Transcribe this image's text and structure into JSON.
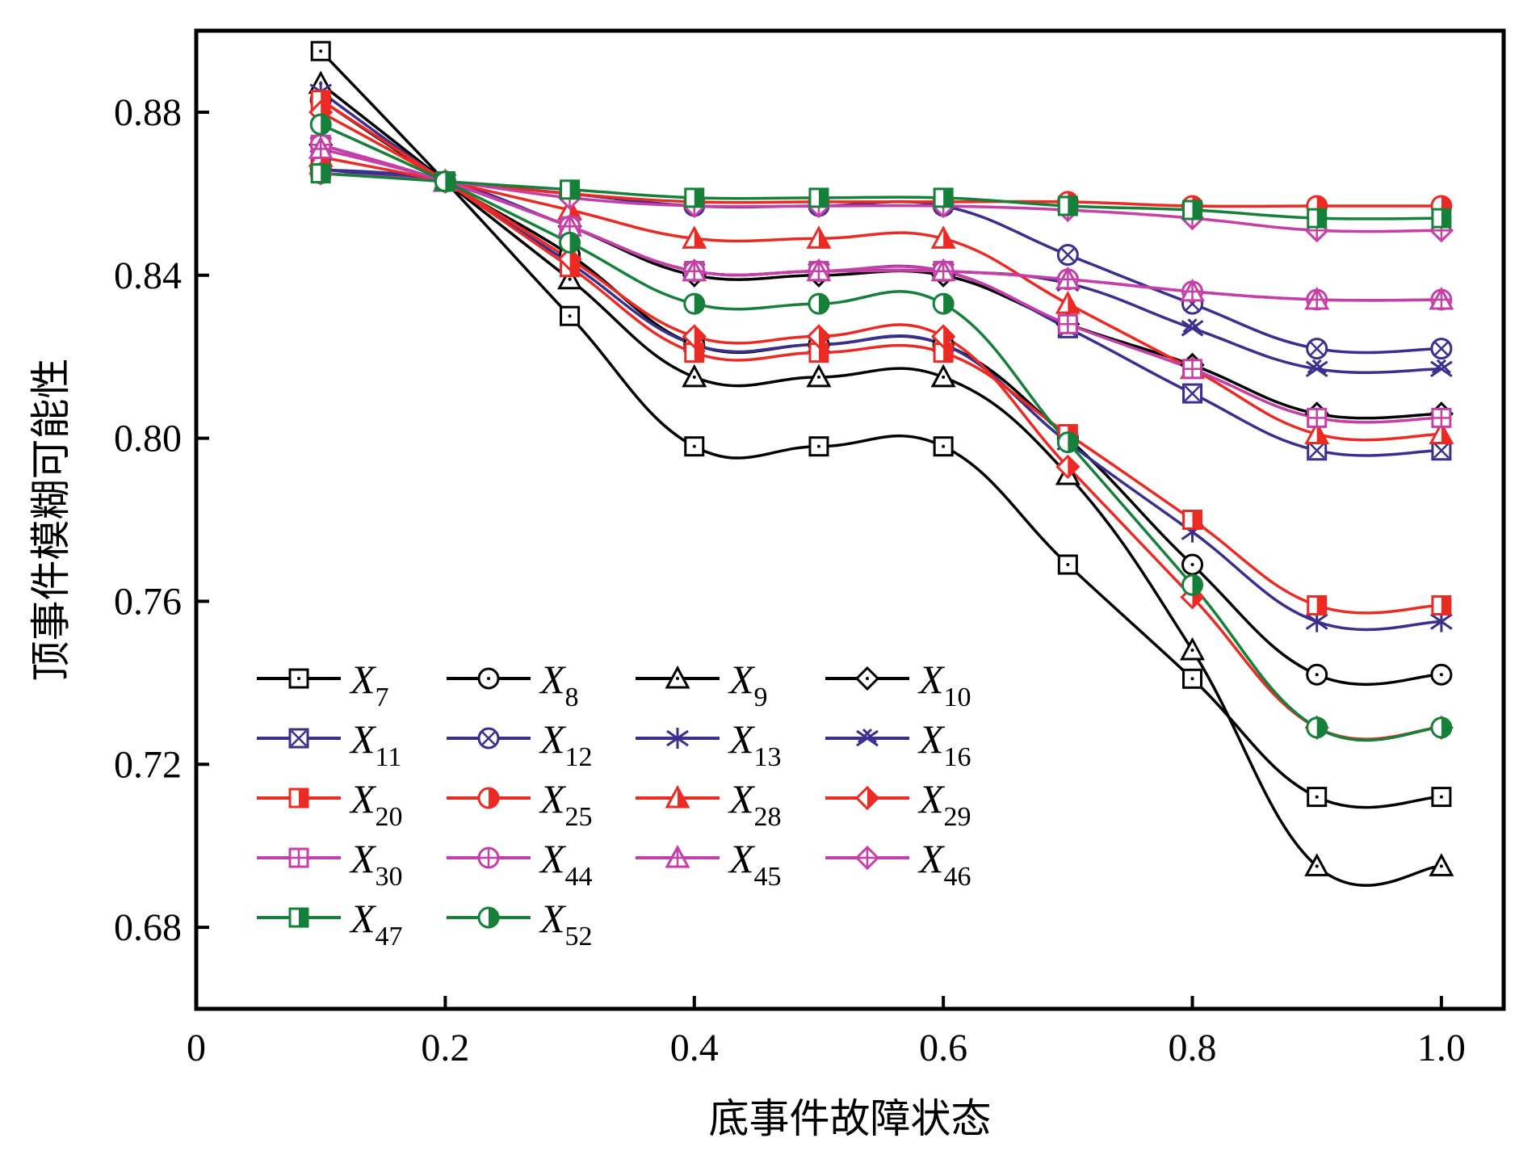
{
  "chart_data": {
    "type": "line",
    "xlabel": "底事件故障状态",
    "ylabel": "顶事件模糊可能性",
    "xlim": [
      0,
      1.05
    ],
    "ylim": [
      0.66,
      0.9
    ],
    "x_ticks": [
      "0",
      "0.2",
      "0.4",
      "0.6",
      "0.8",
      "1.0"
    ],
    "y_ticks": [
      "0.68",
      "0.72",
      "0.76",
      "0.80",
      "0.84",
      "0.88"
    ],
    "grid": false,
    "legend_position": "bottom-left",
    "x": [
      0.1,
      0.2,
      0.3,
      0.4,
      0.5,
      0.6,
      0.7,
      0.8,
      0.9,
      1.0
    ],
    "colors": {
      "black": "#000000",
      "blue": "#3a2f8f",
      "red": "#ec2a24",
      "magenta": "#c63fa8",
      "green": "#15803a"
    },
    "series": [
      {
        "name": "X",
        "sub": "7",
        "color": "#000000",
        "marker": "square-dot",
        "values": [
          0.895,
          0.863,
          0.83,
          0.798,
          0.798,
          0.798,
          0.769,
          0.741,
          0.712,
          0.712
        ]
      },
      {
        "name": "X",
        "sub": "8",
        "color": "#000000",
        "marker": "circle-dot",
        "values": [
          0.883,
          0.863,
          0.845,
          0.823,
          0.823,
          0.823,
          0.8,
          0.769,
          0.742,
          0.742
        ]
      },
      {
        "name": "X",
        "sub": "9",
        "color": "#000000",
        "marker": "triangle-dot",
        "values": [
          0.887,
          0.863,
          0.839,
          0.815,
          0.815,
          0.815,
          0.791,
          0.748,
          0.695,
          0.695
        ]
      },
      {
        "name": "X",
        "sub": "10",
        "color": "#000000",
        "marker": "diamond-dot",
        "values": [
          0.872,
          0.863,
          0.852,
          0.84,
          0.84,
          0.84,
          0.828,
          0.818,
          0.806,
          0.806
        ]
      },
      {
        "name": "X",
        "sub": "11",
        "color": "#3a2f8f",
        "marker": "square-x",
        "values": [
          0.866,
          0.863,
          0.852,
          0.841,
          0.841,
          0.841,
          0.827,
          0.811,
          0.797,
          0.797
        ]
      },
      {
        "name": "X",
        "sub": "12",
        "color": "#3a2f8f",
        "marker": "circle-x",
        "values": [
          0.866,
          0.863,
          0.86,
          0.857,
          0.857,
          0.857,
          0.845,
          0.833,
          0.822,
          0.822
        ]
      },
      {
        "name": "X",
        "sub": "13",
        "color": "#3a2f8f",
        "marker": "star-x",
        "values": [
          0.885,
          0.863,
          0.843,
          0.823,
          0.823,
          0.823,
          0.799,
          0.777,
          0.755,
          0.755
        ]
      },
      {
        "name": "X",
        "sub": "16",
        "color": "#3a2f8f",
        "marker": "double-x",
        "values": [
          0.872,
          0.863,
          0.852,
          0.841,
          0.841,
          0.841,
          0.838,
          0.827,
          0.817,
          0.817
        ]
      },
      {
        "name": "X",
        "sub": "20",
        "color": "#ec2a24",
        "marker": "square-half",
        "values": [
          0.883,
          0.863,
          0.842,
          0.821,
          0.821,
          0.821,
          0.801,
          0.78,
          0.759,
          0.759
        ]
      },
      {
        "name": "X",
        "sub": "25",
        "color": "#ec2a24",
        "marker": "circle-half",
        "values": [
          0.865,
          0.863,
          0.86,
          0.858,
          0.858,
          0.858,
          0.858,
          0.857,
          0.857,
          0.857
        ]
      },
      {
        "name": "X",
        "sub": "28",
        "color": "#ec2a24",
        "marker": "triangle-half",
        "values": [
          0.869,
          0.863,
          0.856,
          0.849,
          0.849,
          0.849,
          0.833,
          0.817,
          0.801,
          0.801
        ]
      },
      {
        "name": "X",
        "sub": "29",
        "color": "#ec2a24",
        "marker": "diamond-half",
        "values": [
          0.88,
          0.863,
          0.844,
          0.825,
          0.825,
          0.825,
          0.793,
          0.761,
          0.729,
          0.729
        ]
      },
      {
        "name": "X",
        "sub": "30",
        "color": "#c63fa8",
        "marker": "square-plus",
        "values": [
          0.872,
          0.863,
          0.852,
          0.841,
          0.841,
          0.841,
          0.828,
          0.817,
          0.805,
          0.805
        ]
      },
      {
        "name": "X",
        "sub": "44",
        "color": "#c63fa8",
        "marker": "circle-plus",
        "values": [
          0.872,
          0.863,
          0.852,
          0.841,
          0.841,
          0.841,
          0.839,
          0.836,
          0.834,
          0.834
        ]
      },
      {
        "name": "X",
        "sub": "45",
        "color": "#c63fa8",
        "marker": "triangle-plus",
        "values": [
          0.871,
          0.863,
          0.852,
          0.841,
          0.841,
          0.841,
          0.839,
          0.836,
          0.834,
          0.834
        ]
      },
      {
        "name": "X",
        "sub": "46",
        "color": "#c63fa8",
        "marker": "diamond-plus",
        "values": [
          0.865,
          0.863,
          0.859,
          0.857,
          0.857,
          0.857,
          0.856,
          0.854,
          0.851,
          0.851
        ]
      },
      {
        "name": "X",
        "sub": "47",
        "color": "#15803a",
        "marker": "square-half",
        "values": [
          0.865,
          0.863,
          0.861,
          0.859,
          0.859,
          0.859,
          0.857,
          0.856,
          0.854,
          0.854
        ]
      },
      {
        "name": "X",
        "sub": "52",
        "color": "#15803a",
        "marker": "circle-half",
        "values": [
          0.877,
          0.863,
          0.848,
          0.833,
          0.833,
          0.833,
          0.799,
          0.764,
          0.729,
          0.729
        ]
      }
    ]
  }
}
